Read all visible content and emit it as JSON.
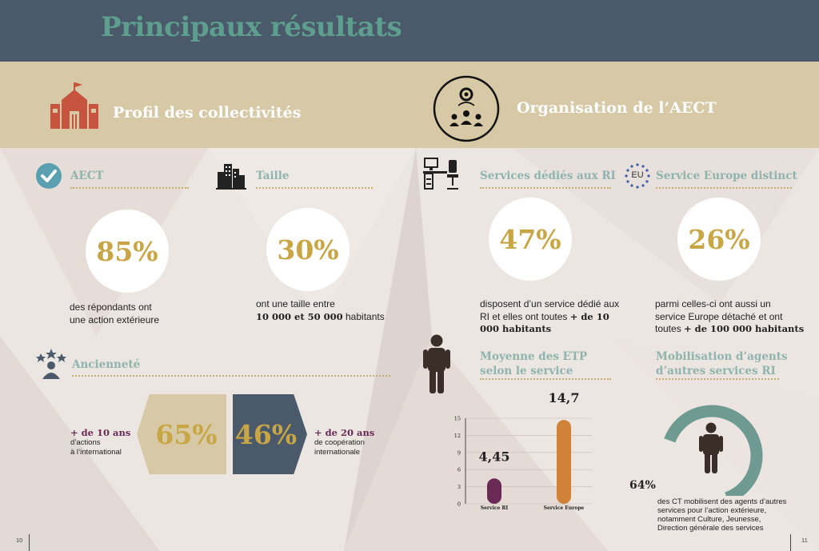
{
  "page_title": "Principaux résultats",
  "left_band_title": "Profil des collectivités",
  "right_band_title": "Organisation de l’AECT",
  "aect": {
    "title": "AECT",
    "value": "85%",
    "desc_line1": "des  répondants  ont",
    "desc_line2": "une action extérieure"
  },
  "taille": {
    "title": "Taille",
    "value": "30%",
    "desc_line1": "ont une taille entre",
    "desc_bold": "10 000 et 50 000",
    "desc_line2_rest": " habitants"
  },
  "anciennete": {
    "title": "Ancienneté",
    "left_value": "65%",
    "right_value": "46%",
    "left_label": "+ de 10 ans",
    "left_desc_line1": "d’actions",
    "left_desc_line2": "à l’international",
    "right_label": "+ de 20 ans",
    "right_desc_line1": "de coopération",
    "right_desc_line2": "internationale"
  },
  "services_ri": {
    "title": "Services dédiés aux RI",
    "value": "47%",
    "desc_line1": "disposent d’un service dédié aux",
    "desc_line2_a": "RI et elles ont toutes ",
    "desc_line2_b": "+ de 10",
    "desc_line3": "000 habitants"
  },
  "service_europe": {
    "title": "Service Europe distinct",
    "eu_badge": "EU",
    "value": "26%",
    "desc_line1": "parmi celles-ci ont aussi un",
    "desc_line2": "service Europe détaché et ont",
    "desc_line3_a": "toutes ",
    "desc_line3_b": "+ de 100 000 habitants"
  },
  "etp": {
    "title_line1": "Moyenne des ETP",
    "title_line2": "selon le service"
  },
  "mobilisation": {
    "title_line1": "Mobilisation d’agents",
    "title_line2": "d’autres services RI",
    "value": "64%",
    "gauge_fraction": 0.64,
    "desc_line1": "des CT mobilisent des agents d’autres",
    "desc_line2": "services pour l’action extérieure,",
    "desc_line3": "notamment Culture, Jeunesse,",
    "desc_line4": "Direction générale des services"
  },
  "chart_data": {
    "type": "bar",
    "categories": [
      "Service RI",
      "Service Europe"
    ],
    "values": [
      4.45,
      14.7
    ],
    "value_labels": [
      "4,45",
      "14,7"
    ],
    "yticks": [
      0,
      3,
      6,
      9,
      12,
      15
    ],
    "ylim": [
      0,
      15
    ],
    "colors": [
      "#6b2a55",
      "#d08338"
    ],
    "grid": true
  },
  "page_left": "10",
  "page_right": "11",
  "colors": {
    "header": "#4a5a6a",
    "title_teal": "#5d9e8e",
    "band": "#d7c8a6",
    "gold": "#c9a645",
    "section_teal": "#8fb3ad",
    "slate": "#4a5a6a",
    "plum": "#6b2a55",
    "orange": "#d08338",
    "brick": "#c6543f"
  }
}
